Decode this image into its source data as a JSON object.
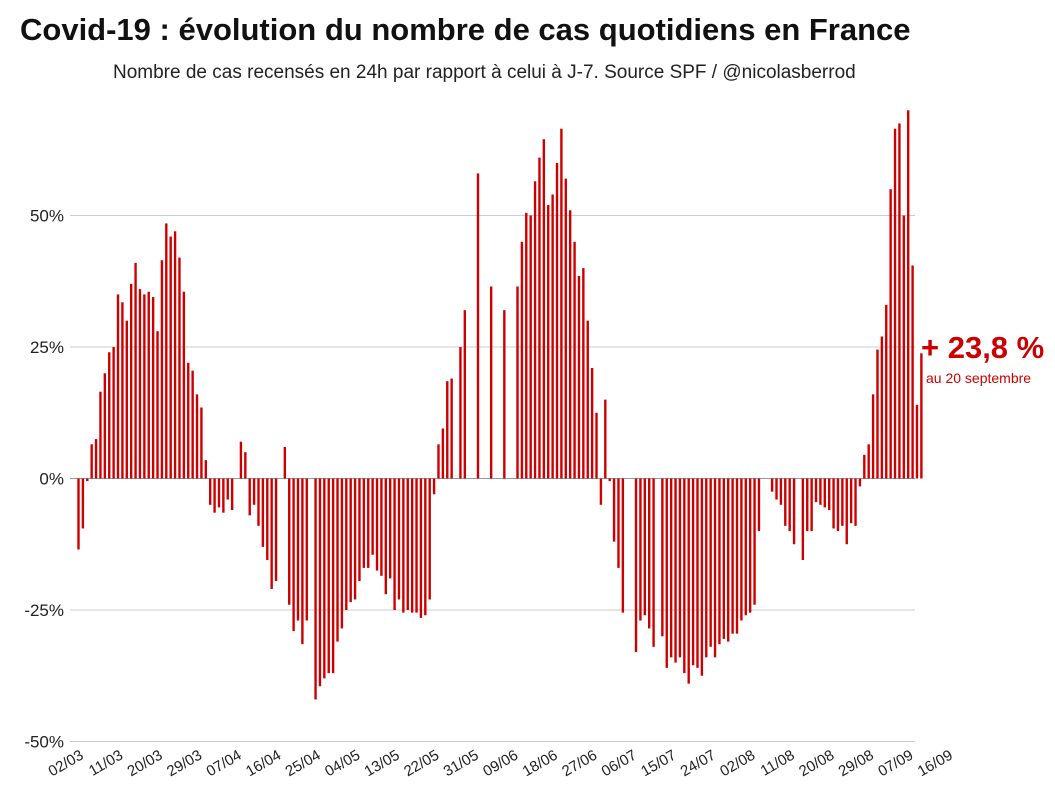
{
  "title": "Covid-19 : évolution du nombre de cas quotidiens en France",
  "subtitle": "Nombre de cas recensés en 24h par rapport à celui à J-7. Source SPF / @nicolasberrod",
  "callout": {
    "value": "+ 23,8 %",
    "note": "au 20 septembre"
  },
  "colors": {
    "bar": "#cc0000",
    "grid": "#cccccc",
    "callout": "#cc0000"
  },
  "chart_data": {
    "type": "bar",
    "ylim": [
      -50,
      70
    ],
    "yticks": [
      50,
      25,
      0,
      -25,
      -50
    ],
    "ytick_labels": [
      "50%",
      "25%",
      "0%",
      "-25%",
      "-50%"
    ],
    "xtick_labels": [
      "02/03",
      "11/03",
      "20/03",
      "29/03",
      "07/04",
      "16/04",
      "25/04",
      "04/05",
      "13/05",
      "22/05",
      "31/05",
      "09/06",
      "18/06",
      "27/06",
      "06/07",
      "15/07",
      "24/07",
      "02/08",
      "11/08",
      "20/08",
      "29/08",
      "07/09",
      "16/09"
    ],
    "grid": true,
    "start_date": "02/03",
    "values": [
      -13.5,
      -9.5,
      -0.5,
      6.5,
      7.5,
      16.5,
      20,
      24,
      25,
      35,
      33.5,
      30,
      37,
      41,
      36,
      35,
      35.5,
      34.5,
      28,
      41.5,
      48.5,
      46,
      47,
      42,
      35.5,
      22,
      20.5,
      16,
      13.5,
      3.5,
      -5,
      -6.5,
      -5.5,
      -6.5,
      -4,
      -6,
      null,
      7,
      5,
      -7,
      -5,
      -9,
      -13,
      -15.5,
      -21,
      -19.5,
      null,
      6,
      -24,
      -29,
      -27,
      -31.5,
      -27,
      null,
      -42,
      -39.5,
      -38,
      -37,
      -37,
      -31,
      -28.5,
      -25,
      -23.5,
      -23,
      -19.5,
      -17,
      -17,
      -14.5,
      -17.5,
      -18.5,
      -22,
      -19,
      -25,
      -23,
      -25.5,
      -25,
      -25.5,
      -25.5,
      -26.5,
      -26,
      -23,
      -3,
      6.5,
      9.5,
      18.5,
      19,
      null,
      25,
      32,
      null,
      null,
      58,
      null,
      null,
      36.5,
      null,
      null,
      32,
      null,
      null,
      36.5,
      45,
      50.5,
      50,
      56.5,
      61,
      64.5,
      52,
      54,
      60,
      66.5,
      57,
      51,
      45,
      38.5,
      40,
      30,
      21,
      12.5,
      -5,
      15,
      -0.5,
      -12,
      -17,
      -25.5,
      null,
      null,
      -33,
      -27,
      -26,
      -28.5,
      -32,
      null,
      -30,
      -36,
      -34,
      -35,
      -34,
      -37,
      -39,
      -35.5,
      -36,
      -37.5,
      -34,
      -32,
      -34,
      -31.5,
      -30.5,
      -31,
      -29.5,
      -29.5,
      -27,
      -26,
      -25.5,
      -24,
      -10,
      null,
      null,
      -2.5,
      -4,
      -5,
      -9,
      -10,
      -12.5,
      null,
      -15.5,
      -10,
      -10,
      -4.5,
      -5,
      -5.5,
      -6,
      -9.5,
      -10,
      -9,
      -12.5,
      -8.5,
      -9,
      -1.5,
      4.5,
      6.5,
      16,
      24.5,
      27,
      33,
      55,
      66.5,
      67.5,
      50,
      70,
      40.5,
      14,
      23.8
    ]
  }
}
